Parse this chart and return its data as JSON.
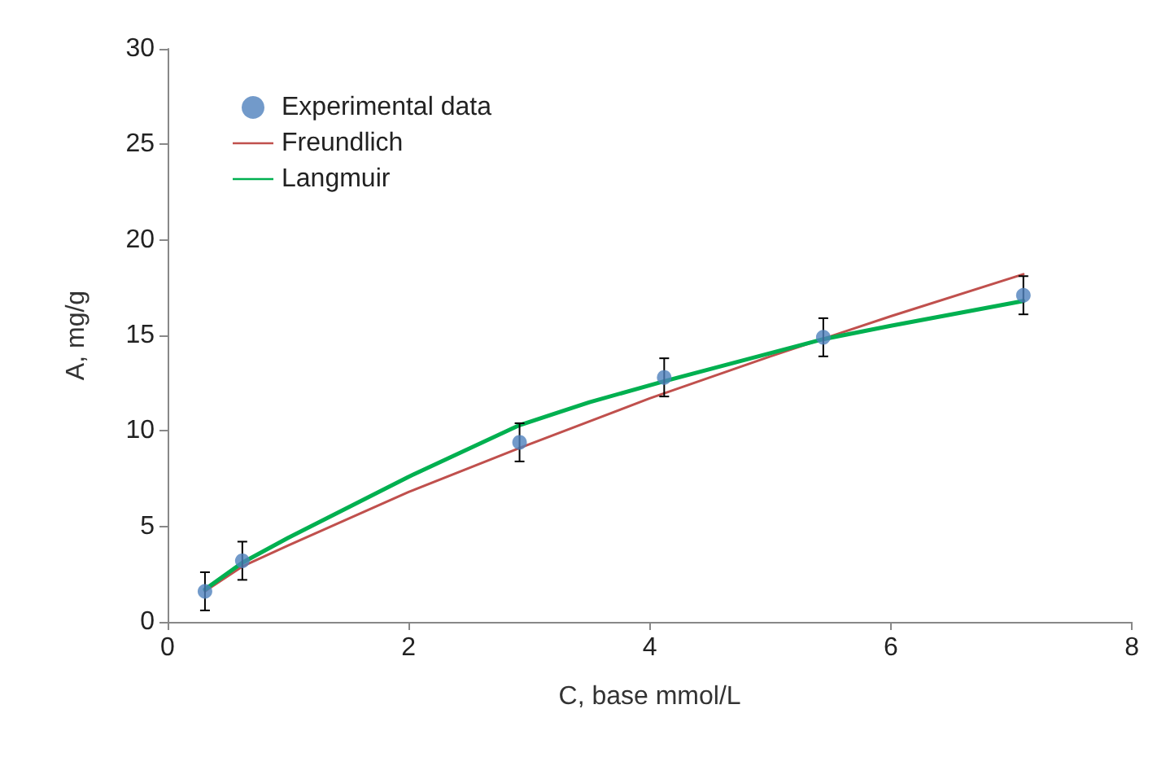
{
  "chart_data": {
    "type": "scatter",
    "xlabel": "C, base mmol/L",
    "ylabel": "A, mg/g",
    "xlim": [
      0,
      8
    ],
    "xticks": [
      0,
      2,
      4,
      6,
      8
    ],
    "ylim": [
      0,
      30
    ],
    "yticks": [
      0,
      5,
      10,
      15,
      20,
      25,
      30
    ],
    "grid": false,
    "legend": "top left",
    "series": [
      {
        "name": "Experimental data",
        "marker": "circle",
        "color": "#4f81bd",
        "x": [
          0.31,
          0.62,
          2.92,
          4.12,
          5.44,
          7.1
        ],
        "values": [
          1.6,
          3.2,
          9.4,
          12.8,
          14.9,
          17.1
        ],
        "errors": [
          1.0,
          1.0,
          1.0,
          1.0,
          1.0,
          1.0
        ]
      },
      {
        "name": "Freundlich",
        "type": "line",
        "marker": "none",
        "line_style": "solid",
        "color": "#c0504d",
        "x": [
          0.31,
          0.62,
          1,
          2,
          2.92,
          4,
          5,
          6,
          7.1
        ],
        "values": [
          1.6,
          2.9,
          4.0,
          6.8,
          9.1,
          11.7,
          13.9,
          16.0,
          18.2
        ]
      },
      {
        "name": "Langmuir",
        "type": "line",
        "marker": "none",
        "line_style": "solid",
        "color": "#00b050",
        "x": [
          0.31,
          0.62,
          1,
          2,
          2.92,
          3.5,
          4.12,
          5.44,
          6,
          7.1
        ],
        "values": [
          1.7,
          3.1,
          4.4,
          7.6,
          10.3,
          11.5,
          12.6,
          14.8,
          15.5,
          16.8
        ]
      }
    ]
  }
}
